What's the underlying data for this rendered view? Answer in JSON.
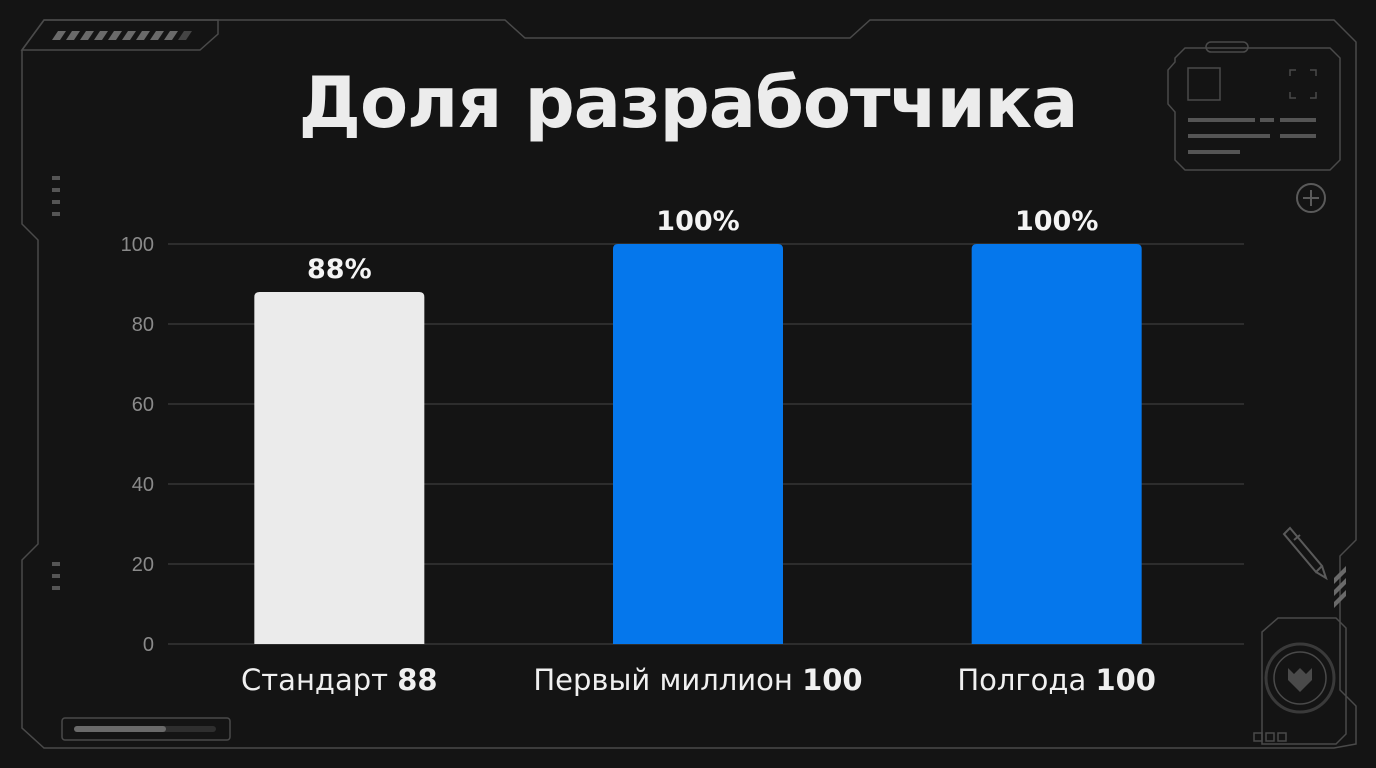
{
  "title": "Доля разработчика",
  "colors": {
    "background": "#141414",
    "frame": "#4a4a4a",
    "grid": "#3c3c3c",
    "bar_standard": "#ebebeb",
    "bar_accent": "#0577ec"
  },
  "decor_icons": [
    "hatch-stripes-icon",
    "panel-widget-icon",
    "plus-circle-icon",
    "pencil-icon",
    "fox-emblem-icon",
    "progress-bar-icon"
  ],
  "chart_data": {
    "type": "bar",
    "title": "Доля разработчика",
    "categories": [
      "Стандарт",
      "Первый миллион",
      "Полгода"
    ],
    "values": [
      88,
      100,
      100
    ],
    "value_labels": [
      "88%",
      "100%",
      "100%"
    ],
    "category_values": [
      "88",
      "100",
      "100"
    ],
    "bar_colors": [
      "#ebebeb",
      "#0577ec",
      "#0577ec"
    ],
    "ylim": [
      0,
      100
    ],
    "yticks": [
      "0",
      "20",
      "40",
      "60",
      "80",
      "100"
    ],
    "xlabel": "",
    "ylabel": "",
    "grid": true
  }
}
